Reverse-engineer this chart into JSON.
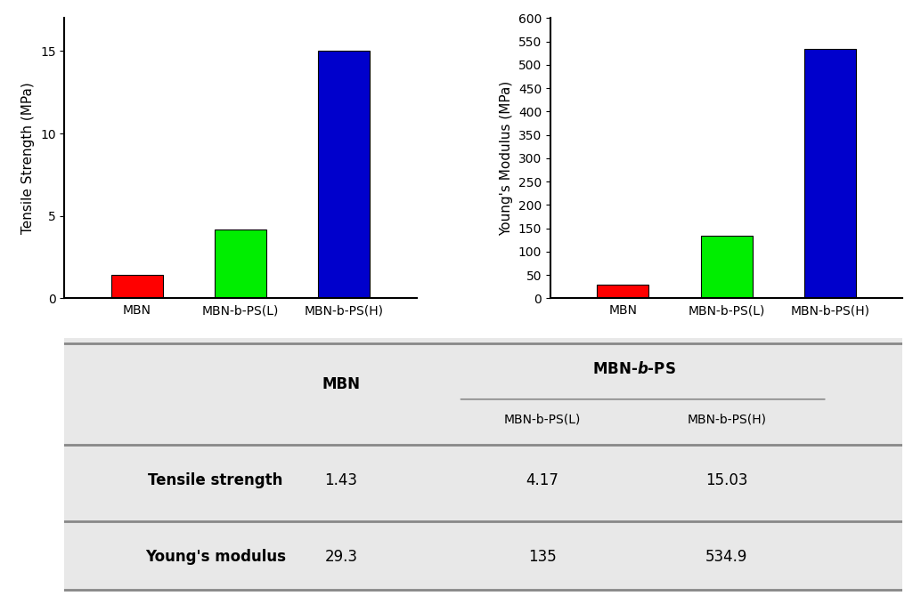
{
  "categories": [
    "MBN",
    "MBN-b-PS(L)",
    "MBN-b-PS(H)"
  ],
  "tensile_values": [
    1.43,
    4.17,
    15.03
  ],
  "modulus_values": [
    29.3,
    135,
    534.9
  ],
  "bar_colors": [
    "#ff0000",
    "#00ee00",
    "#0000cc"
  ],
  "tensile_ylabel": "Tensile Strength (MPa)",
  "modulus_ylabel": "Young's Modulus (MPa)",
  "tensile_ylim": [
    0,
    17
  ],
  "tensile_yticks": [
    0,
    5,
    10,
    15
  ],
  "modulus_ylim": [
    0,
    600
  ],
  "modulus_yticks": [
    0,
    50,
    100,
    150,
    200,
    250,
    300,
    350,
    400,
    450,
    500,
    550,
    600
  ],
  "table_header_col1": "MBN",
  "table_header_col2": "MBN-b-PS",
  "table_subheader_col2a": "MBN-b-PS(L)",
  "table_subheader_col2b": "MBN-b-PS(H)",
  "table_row1_label": "Tensile strength",
  "table_row2_label": "Young's modulus",
  "table_data": [
    [
      1.43,
      4.17,
      15.03
    ],
    [
      29.3,
      135,
      534.9
    ]
  ],
  "table_bg": "#e8e8e8",
  "fig_bg": "#ffffff",
  "bar_width": 0.5,
  "spine_linewidth": 1.5
}
